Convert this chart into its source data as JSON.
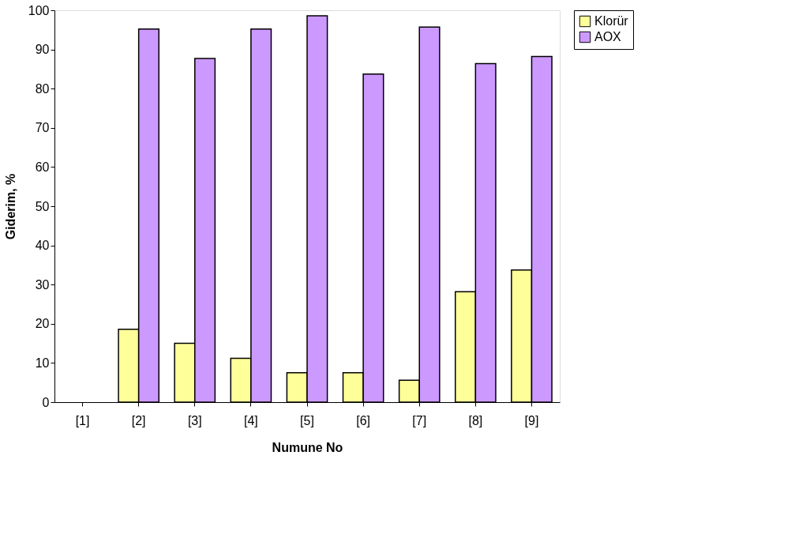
{
  "chart_data": {
    "type": "bar",
    "xlabel": "Numune No",
    "ylabel": "Giderim, %",
    "categories": [
      "[1]",
      "[2]",
      "[3]",
      "[4]",
      "[5]",
      "[6]",
      "[7]",
      "[8]",
      "[9]"
    ],
    "series": [
      {
        "name": "Klorür",
        "color": "#ffff99",
        "values": [
          null,
          18.6,
          15.0,
          11.2,
          7.5,
          7.5,
          5.6,
          28.2,
          33.7
        ]
      },
      {
        "name": "AOX",
        "color": "#cc99ff",
        "values": [
          null,
          95.2,
          87.7,
          95.2,
          98.6,
          83.7,
          95.7,
          86.4,
          88.2
        ]
      }
    ],
    "ylim": [
      0,
      100
    ],
    "yticks": [
      0,
      10,
      20,
      30,
      40,
      50,
      60,
      70,
      80,
      90,
      100
    ],
    "grid": false,
    "legend": "right"
  }
}
